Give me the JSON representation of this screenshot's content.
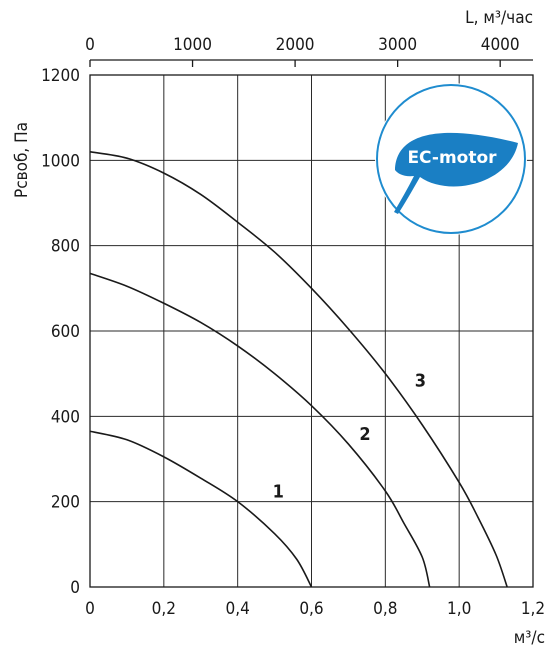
{
  "chart_data": {
    "type": "line",
    "xlabel": "м³/с",
    "ylabel": "Рсвоб, Па",
    "x2label": "L, м³/час",
    "xlim": [
      0,
      1.2
    ],
    "ylim": [
      0,
      1200
    ],
    "x2lim": [
      0,
      4320
    ],
    "xticks": [
      "0",
      "0,2",
      "0,4",
      "0,6",
      "0,8",
      "1,0",
      "1,2"
    ],
    "yticks": [
      "0",
      "200",
      "400",
      "600",
      "800",
      "1000",
      "1200"
    ],
    "x2ticks": [
      "0",
      "1000",
      "2000",
      "3000",
      "4000"
    ],
    "grid": true,
    "series": [
      {
        "name": "1",
        "x": [
          0,
          0.1,
          0.2,
          0.3,
          0.4,
          0.5,
          0.56,
          0.6
        ],
        "y": [
          365,
          345,
          305,
          255,
          200,
          125,
          65,
          0
        ]
      },
      {
        "name": "2",
        "x": [
          0,
          0.1,
          0.2,
          0.3,
          0.4,
          0.5,
          0.6,
          0.7,
          0.8,
          0.85,
          0.9,
          0.92
        ],
        "y": [
          735,
          705,
          665,
          620,
          565,
          500,
          425,
          335,
          225,
          150,
          70,
          0
        ]
      },
      {
        "name": "3",
        "x": [
          0,
          0.1,
          0.2,
          0.3,
          0.4,
          0.5,
          0.6,
          0.7,
          0.8,
          0.9,
          1.0,
          1.05,
          1.1,
          1.13
        ],
        "y": [
          1020,
          1005,
          970,
          920,
          855,
          785,
          700,
          605,
          500,
          380,
          245,
          165,
          75,
          0
        ]
      }
    ],
    "badge": {
      "text": "EC-motor",
      "circle_color": "#1f8ccf",
      "leaf_color": "#1a7fc4"
    }
  }
}
